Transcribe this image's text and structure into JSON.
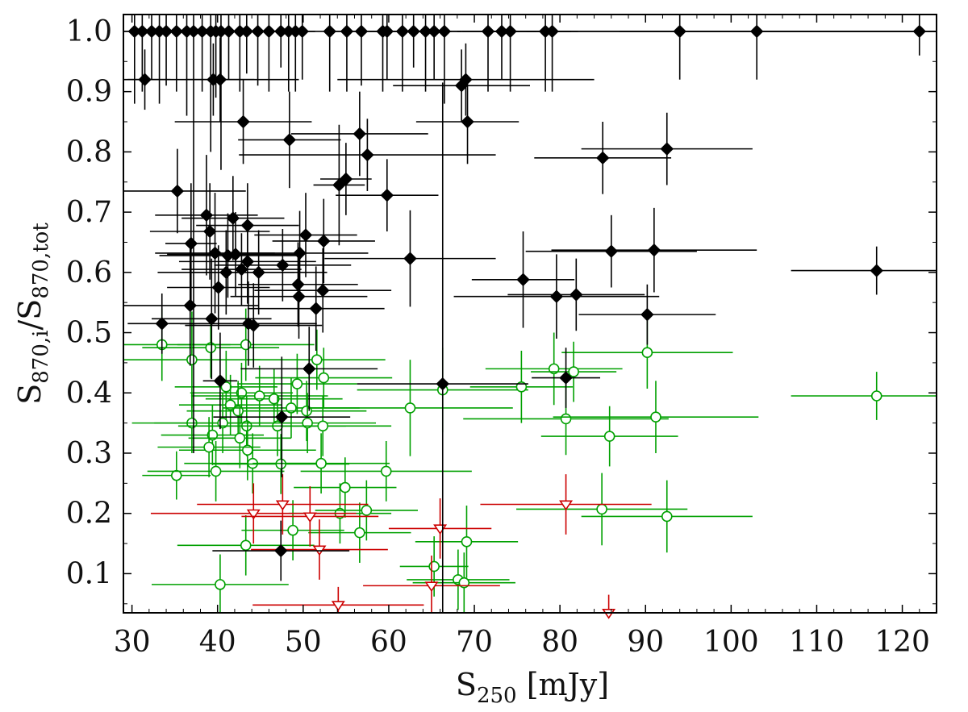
{
  "chart_data": {
    "type": "scatter",
    "xlabel": {
      "base": "S",
      "sub": "250",
      "rest": " [mJy]"
    },
    "ylabel": {
      "n_base": "S",
      "n_sub": "870,i",
      "slash": "/",
      "d_base": "S",
      "d_sub": "870,tot"
    },
    "xlim": [
      29,
      124
    ],
    "ylim": [
      0.035,
      1.028
    ],
    "x_ticks": [
      30,
      40,
      50,
      60,
      70,
      80,
      90,
      100,
      110,
      120
    ],
    "x_tick_labels": [
      "30",
      "40",
      "50",
      "60",
      "70",
      "80",
      "90",
      "100",
      "110",
      "120"
    ],
    "y_ticks": [
      0.1,
      0.2,
      0.3,
      0.4,
      0.5,
      0.6,
      0.7,
      0.8,
      0.9,
      1.0
    ],
    "y_tick_labels": [
      "0.1",
      "0.2",
      "0.3",
      "0.4",
      "0.5",
      "0.6",
      "0.7",
      "0.8",
      "0.9",
      "1.0"
    ],
    "grid": false,
    "legend": "none",
    "series": [
      {
        "marker": "filled-diamond",
        "color": "#000000",
        "points": [
          [
            30.3,
            1.0,
            1.5,
            0.12
          ],
          [
            31.2,
            1.0,
            1.5,
            0.1
          ],
          [
            32.3,
            1.0,
            1.8,
            0.08
          ],
          [
            33.2,
            1.0,
            1.5,
            0.12
          ],
          [
            34.0,
            1.0,
            1.5,
            0.09
          ],
          [
            35.2,
            1.0,
            2.0,
            0.1
          ],
          [
            36.4,
            1.0,
            1.8,
            0.14
          ],
          [
            37.2,
            1.0,
            1.5,
            0.7
          ],
          [
            38.2,
            1.0,
            1.5,
            0.1
          ],
          [
            39.2,
            1.0,
            1.5,
            0.2
          ],
          [
            39.8,
            1.0,
            2.0,
            0.11
          ],
          [
            40.4,
            1.0,
            1.5,
            0.23
          ],
          [
            41.3,
            1.0,
            1.5,
            0.08
          ],
          [
            42.6,
            1.0,
            2.0,
            0.1
          ],
          [
            43.4,
            1.0,
            1.5,
            0.07
          ],
          [
            44.7,
            1.0,
            1.5,
            0.09
          ],
          [
            46.0,
            1.0,
            2.0,
            0.1
          ],
          [
            47.4,
            1.0,
            1.5,
            0.06
          ],
          [
            48.3,
            1.0,
            1.5,
            0.1
          ],
          [
            49.1,
            1.0,
            2.0,
            0.1
          ],
          [
            49.9,
            1.0,
            1.5,
            0.08
          ],
          [
            53.1,
            1.0,
            2.0,
            0.1
          ],
          [
            55.1,
            1.0,
            2.0,
            0.1
          ],
          [
            56.8,
            1.0,
            2.0,
            0.09
          ],
          [
            59.3,
            1.0,
            2.0,
            0.1
          ],
          [
            59.8,
            1.0,
            2.0,
            0.08
          ],
          [
            61.6,
            1.0,
            2.0,
            0.1
          ],
          [
            62.9,
            1.0,
            2.0,
            0.06
          ],
          [
            64.3,
            1.0,
            2.0,
            0.1
          ],
          [
            65.3,
            1.0,
            2.0,
            0.08
          ],
          [
            66.5,
            1.0,
            2.0,
            0.12
          ],
          [
            71.6,
            1.0,
            3.0,
            0.1
          ],
          [
            73.2,
            1.0,
            2.0,
            0.08
          ],
          [
            74.2,
            1.0,
            3.0,
            0.1
          ],
          [
            78.3,
            1.0,
            3.0,
            0.1
          ],
          [
            79.1,
            1.0,
            3.0,
            0.1
          ],
          [
            94.0,
            1.0,
            30.0,
            0.08
          ],
          [
            103.0,
            1.0,
            35.0,
            0.08
          ],
          [
            122.0,
            1.0,
            35.0,
            0.04
          ],
          [
            31.5,
            0.92,
            3.0,
            0.05
          ],
          [
            39.5,
            0.92,
            10.0,
            0.06
          ],
          [
            40.3,
            0.92,
            4.0,
            0.07
          ],
          [
            68.5,
            0.91,
            8.0,
            0.06
          ],
          [
            69.0,
            0.92,
            15.0,
            0.06
          ],
          [
            43.0,
            0.85,
            8.0,
            0.07
          ],
          [
            48.4,
            0.82,
            6.0,
            0.08
          ],
          [
            56.6,
            0.83,
            8.0,
            0.07
          ],
          [
            57.5,
            0.795,
            15.0,
            0.06
          ],
          [
            69.2,
            0.85,
            6.0,
            0.07
          ],
          [
            85.0,
            0.79,
            8.0,
            0.06
          ],
          [
            92.5,
            0.805,
            10.0,
            0.06
          ],
          [
            54.2,
            0.745,
            3.0,
            0.1
          ],
          [
            55.0,
            0.755,
            3.0,
            0.06
          ],
          [
            35.3,
            0.735,
            8.0,
            0.07
          ],
          [
            59.8,
            0.728,
            6.0,
            0.06
          ],
          [
            38.7,
            0.695,
            6.0,
            0.1
          ],
          [
            41.8,
            0.69,
            6.0,
            0.07
          ],
          [
            39.1,
            0.668,
            7.0,
            0.08
          ],
          [
            43.5,
            0.678,
            6.0,
            0.07
          ],
          [
            36.9,
            0.648,
            3.0,
            0.1
          ],
          [
            50.3,
            0.662,
            6.0,
            0.07
          ],
          [
            52.4,
            0.652,
            6.0,
            0.07
          ],
          [
            86.0,
            0.635,
            10.0,
            0.06
          ],
          [
            91.0,
            0.637,
            12.0,
            0.07
          ],
          [
            39.7,
            0.632,
            7.0,
            0.1
          ],
          [
            41.2,
            0.628,
            8.0,
            0.07
          ],
          [
            42.1,
            0.63,
            8.0,
            0.07
          ],
          [
            43.5,
            0.618,
            8.0,
            0.07
          ],
          [
            49.6,
            0.632,
            8.0,
            0.07
          ],
          [
            41.0,
            0.6,
            8.0,
            0.07
          ],
          [
            42.8,
            0.605,
            7.0,
            0.06
          ],
          [
            44.8,
            0.6,
            8.0,
            0.07
          ],
          [
            47.6,
            0.612,
            8.0,
            0.06
          ],
          [
            62.5,
            0.623,
            10.0,
            0.08
          ],
          [
            117.0,
            0.603,
            10.0,
            0.04
          ],
          [
            40.1,
            0.575,
            6.0,
            0.07
          ],
          [
            49.4,
            0.58,
            7.0,
            0.07
          ],
          [
            52.3,
            0.57,
            8.0,
            0.07
          ],
          [
            75.7,
            0.588,
            6.0,
            0.08
          ],
          [
            36.8,
            0.545,
            8.0,
            0.1
          ],
          [
            39.3,
            0.523,
            7.0,
            0.1
          ],
          [
            49.5,
            0.56,
            8.0,
            0.07
          ],
          [
            51.5,
            0.54,
            8.0,
            0.07
          ],
          [
            79.6,
            0.56,
            12.0,
            0.07
          ],
          [
            81.9,
            0.563,
            8.0,
            0.06
          ],
          [
            33.5,
            0.515,
            4.0,
            0.05
          ],
          [
            43.6,
            0.515,
            8.0,
            0.07
          ],
          [
            44.2,
            0.512,
            8.0,
            0.07
          ],
          [
            90.2,
            0.53,
            8.0,
            0.05
          ],
          [
            40.3,
            0.42,
            2.0,
            0.08
          ],
          [
            50.7,
            0.44,
            8.0,
            0.07
          ],
          [
            66.3,
            0.415,
            10.0,
            0.5
          ],
          [
            80.7,
            0.425,
            4.0,
            0.05
          ],
          [
            47.5,
            0.36,
            8.0,
            0.1
          ],
          [
            47.4,
            0.138,
            8.0,
            0.05
          ]
        ]
      },
      {
        "marker": "open-circle",
        "color": "#00a000",
        "points": [
          [
            33.5,
            0.48,
            8.0,
            0.06
          ],
          [
            37.0,
            0.455,
            8.0,
            0.08
          ],
          [
            39.2,
            0.475,
            8.0,
            0.05
          ],
          [
            43.3,
            0.48,
            8.0,
            0.06
          ],
          [
            51.6,
            0.455,
            8.0,
            0.05
          ],
          [
            41.0,
            0.41,
            6.0,
            0.06
          ],
          [
            42.8,
            0.4,
            6.0,
            0.05
          ],
          [
            44.9,
            0.395,
            8.0,
            0.05
          ],
          [
            46.6,
            0.39,
            8.0,
            0.05
          ],
          [
            49.3,
            0.415,
            7.0,
            0.05
          ],
          [
            52.4,
            0.425,
            8.0,
            0.05
          ],
          [
            41.5,
            0.38,
            6.0,
            0.05
          ],
          [
            42.4,
            0.37,
            6.0,
            0.05
          ],
          [
            48.6,
            0.375,
            8.0,
            0.05
          ],
          [
            50.4,
            0.37,
            7.0,
            0.05
          ],
          [
            62.5,
            0.375,
            12.0,
            0.08
          ],
          [
            66.3,
            0.405,
            10.0,
            0.07
          ],
          [
            75.5,
            0.41,
            6.0,
            0.06
          ],
          [
            79.3,
            0.44,
            8.0,
            0.06
          ],
          [
            81.6,
            0.435,
            5.0,
            0.05
          ],
          [
            90.2,
            0.467,
            10.0,
            0.06
          ],
          [
            117.0,
            0.395,
            10.0,
            0.04
          ],
          [
            37.0,
            0.35,
            7.0,
            0.05
          ],
          [
            40.6,
            0.35,
            8.0,
            0.05
          ],
          [
            43.4,
            0.345,
            8.0,
            0.05
          ],
          [
            47.0,
            0.345,
            8.0,
            0.05
          ],
          [
            50.5,
            0.35,
            8.0,
            0.05
          ],
          [
            52.3,
            0.345,
            8.0,
            0.05
          ],
          [
            80.7,
            0.357,
            12.0,
            0.06
          ],
          [
            91.2,
            0.36,
            12.0,
            0.06
          ],
          [
            39.4,
            0.33,
            6.0,
            0.05
          ],
          [
            42.6,
            0.325,
            6.0,
            0.05
          ],
          [
            43.5,
            0.305,
            8.0,
            0.05
          ],
          [
            39.0,
            0.31,
            6.0,
            0.05
          ],
          [
            85.8,
            0.328,
            8.0,
            0.05
          ],
          [
            35.2,
            0.263,
            4.0,
            0.04
          ],
          [
            39.8,
            0.27,
            8.0,
            0.05
          ],
          [
            44.1,
            0.283,
            8.0,
            0.05
          ],
          [
            47.4,
            0.282,
            8.0,
            0.05
          ],
          [
            52.1,
            0.283,
            8.0,
            0.05
          ],
          [
            59.7,
            0.27,
            10.0,
            0.05
          ],
          [
            54.9,
            0.243,
            6.0,
            0.05
          ],
          [
            54.3,
            0.2,
            6.0,
            0.05
          ],
          [
            57.4,
            0.205,
            6.0,
            0.05
          ],
          [
            84.9,
            0.207,
            10.0,
            0.06
          ],
          [
            92.5,
            0.195,
            10.0,
            0.06
          ],
          [
            48.8,
            0.172,
            6.0,
            0.05
          ],
          [
            56.6,
            0.168,
            6.0,
            0.05
          ],
          [
            43.3,
            0.147,
            8.0,
            0.05
          ],
          [
            69.1,
            0.153,
            6.0,
            0.06
          ],
          [
            65.3,
            0.112,
            4.0,
            0.05
          ],
          [
            68.1,
            0.09,
            6.0,
            0.05
          ],
          [
            68.8,
            0.085,
            6.0,
            0.05
          ],
          [
            40.3,
            0.082,
            8.0,
            0.05
          ]
        ]
      },
      {
        "marker": "open-triangle-down",
        "color": "#cc0000",
        "points": [
          [
            44.2,
            0.2,
            12.0,
            0.05
          ],
          [
            47.6,
            0.215,
            10.0,
            0.05
          ],
          [
            50.8,
            0.195,
            8.0,
            0.05
          ],
          [
            51.9,
            0.14,
            8.0,
            0.05
          ],
          [
            66.0,
            0.175,
            6.0,
            0.05
          ],
          [
            80.7,
            0.215,
            10.0,
            0.05
          ],
          [
            65.0,
            0.08,
            8.0,
            0.05
          ],
          [
            54.1,
            0.048,
            10.0,
            0.03
          ],
          [
            85.7,
            0.035,
            10.0,
            0.03
          ]
        ]
      }
    ]
  }
}
